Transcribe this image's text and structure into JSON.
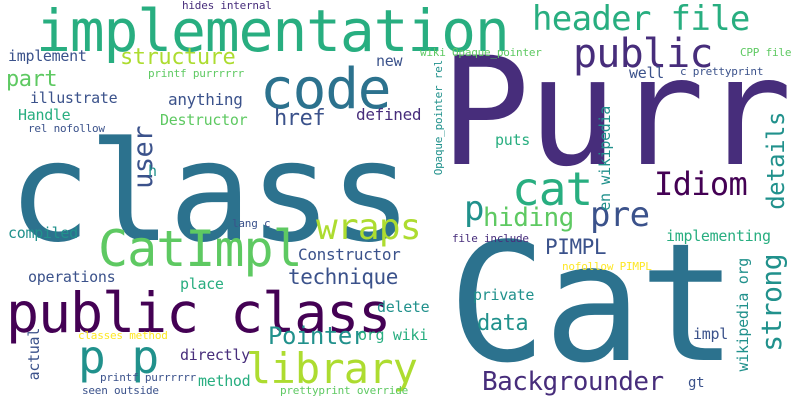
{
  "palette": {
    "background": "#ffffff",
    "dark_purple": "#440154",
    "purple": "#472d7b",
    "indigo": "#3b528b",
    "blue": "#2c728e",
    "teal": "#21918c",
    "green_teal": "#28ae80",
    "green": "#5ec962",
    "lime": "#addc30",
    "yellow": "#fde725"
  },
  "words": [
    {
      "text": "Purr",
      "color": "#472d7b"
    },
    {
      "text": "class",
      "color": "#2c728e"
    },
    {
      "text": "Cat",
      "color": "#2c728e"
    },
    {
      "text": "implementation",
      "color": "#28ae80"
    },
    {
      "text": "code",
      "color": "#2c728e"
    },
    {
      "text": "public class",
      "color": "#440154"
    },
    {
      "text": "CatImpl",
      "color": "#5ec962"
    },
    {
      "text": "cat",
      "color": "#28ae80"
    },
    {
      "text": "public",
      "color": "#472d7b"
    },
    {
      "text": "header file",
      "color": "#28ae80"
    },
    {
      "text": "p p",
      "color": "#21918c"
    },
    {
      "text": "library",
      "color": "#addc30"
    },
    {
      "text": "Idiom",
      "color": "#440154"
    },
    {
      "text": "wraps",
      "color": "#addc30"
    },
    {
      "text": "hiding",
      "color": "#5ec962"
    },
    {
      "text": "pre",
      "color": "#3b528b"
    },
    {
      "text": "p",
      "color": "#21918c"
    },
    {
      "text": "Pointer",
      "color": "#21918c"
    },
    {
      "text": "Backgrounder",
      "color": "#472d7b"
    },
    {
      "text": "strong",
      "color": "#21918c"
    },
    {
      "text": "user",
      "color": "#3b528b"
    },
    {
      "text": "details",
      "color": "#21918c"
    },
    {
      "text": "structure",
      "color": "#addc30"
    },
    {
      "text": "href",
      "color": "#3b528b"
    },
    {
      "text": "technique",
      "color": "#3b528b"
    },
    {
      "text": "PIMPL",
      "color": "#3b528b"
    },
    {
      "text": "data",
      "color": "#21918c"
    },
    {
      "text": "part",
      "color": "#5ec962"
    },
    {
      "text": "Constructor",
      "color": "#3b528b"
    },
    {
      "text": "Destructor",
      "color": "#5ec962"
    },
    {
      "text": "anything",
      "color": "#3b528b"
    },
    {
      "text": "defined",
      "color": "#472d7b"
    },
    {
      "text": "implementing",
      "color": "#28ae80"
    },
    {
      "text": "illustrate",
      "color": "#3b528b"
    },
    {
      "text": "Handle",
      "color": "#28ae80"
    },
    {
      "text": "compiled",
      "color": "#21918c"
    },
    {
      "text": "operations",
      "color": "#3b528b"
    },
    {
      "text": "place",
      "color": "#28ae80"
    },
    {
      "text": "private",
      "color": "#21918c"
    },
    {
      "text": "delete",
      "color": "#21918c"
    },
    {
      "text": "org wiki",
      "color": "#28ae80"
    },
    {
      "text": "directly",
      "color": "#472d7b"
    },
    {
      "text": "method",
      "color": "#28ae80"
    },
    {
      "text": "actual",
      "color": "#3b528b"
    },
    {
      "text": "impl",
      "color": "#3b528b"
    },
    {
      "text": "puts",
      "color": "#28ae80"
    },
    {
      "text": "new",
      "color": "#3b528b"
    },
    {
      "text": "well",
      "color": "#3b528b"
    },
    {
      "text": "implement",
      "color": "#3b528b"
    },
    {
      "text": "en wikipedia",
      "color": "#21918c"
    },
    {
      "text": "wikipedia org",
      "color": "#21918c"
    },
    {
      "text": "gt",
      "color": "#3b528b"
    },
    {
      "text": "h",
      "color": "#21918c"
    },
    {
      "text": "hides internal",
      "color": "#472d7b"
    },
    {
      "text": "wiki Opaque_pointer",
      "color": "#5ec962"
    },
    {
      "text": "Opaque_pointer rel",
      "color": "#21918c"
    },
    {
      "text": "CPP file",
      "color": "#5ec962"
    },
    {
      "text": "c prettyprint",
      "color": "#3b528b"
    },
    {
      "text": "printf purrrrrr",
      "color": "#5ec962"
    },
    {
      "text": "rel nofollow",
      "color": "#3b528b"
    },
    {
      "text": "lang c",
      "color": "#3b528b"
    },
    {
      "text": "file include",
      "color": "#472d7b"
    },
    {
      "text": "nofollow PIMPL",
      "color": "#fde725"
    },
    {
      "text": "classes method",
      "color": "#fde725"
    },
    {
      "text": "printf purrrrrr",
      "color": "#3b528b"
    },
    {
      "text": "seen outside",
      "color": "#3b528b"
    },
    {
      "text": "prettyprint override",
      "color": "#5ec962"
    }
  ]
}
